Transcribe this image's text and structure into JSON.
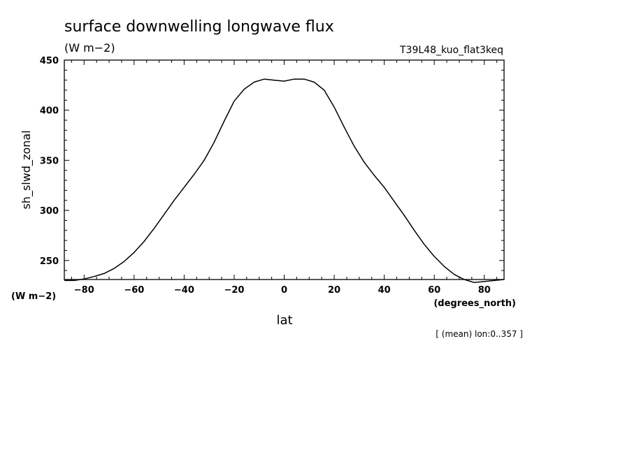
{
  "chart_data": {
    "type": "line",
    "title": "surface downwelling longwave flux",
    "units_label": "(W m−2)",
    "dataset": "T39L48_kuo_flat3keq",
    "xlabel": "lat",
    "x_units": "(degrees_north)",
    "ylabel": "sh_slwd_zonal",
    "y_units": "(W m−2)",
    "footnote": "[ (mean) lon:0..357 ]",
    "xlim": [
      -87.9,
      87.9
    ],
    "ylim": [
      231,
      450
    ],
    "xticks": [
      -80,
      -60,
      -40,
      -20,
      0,
      20,
      40,
      60,
      80
    ],
    "xtick_labels": [
      "−80",
      "−60",
      "−40",
      "−20",
      "0",
      "20",
      "40",
      "60",
      "80"
    ],
    "yticks": [
      250,
      300,
      350,
      400,
      450
    ],
    "ytick_labels": [
      "250",
      "300",
      "350",
      "400",
      "450"
    ],
    "series": [
      {
        "x": [
          -87.9,
          -84,
          -80,
          -76,
          -72,
          -68,
          -64,
          -60,
          -56,
          -52,
          -48,
          -44,
          -40,
          -36,
          -32,
          -28,
          -24,
          -20,
          -16,
          -12,
          -8,
          -4,
          0,
          4,
          8,
          12,
          16,
          20,
          24,
          28,
          32,
          36,
          40,
          44,
          48,
          52,
          56,
          60,
          64,
          68,
          72,
          76,
          80,
          84,
          87.9
        ],
        "y": [
          230,
          230,
          231.5,
          234,
          237,
          242,
          249,
          258,
          269,
          282,
          296,
          310,
          323,
          336,
          350,
          368,
          389,
          409,
          421,
          428,
          431,
          430,
          429,
          431,
          431,
          428,
          420,
          403,
          383,
          364,
          348,
          335,
          323,
          309,
          295,
          280,
          266,
          254,
          244,
          236,
          231,
          228,
          229,
          230,
          231
        ]
      }
    ]
  }
}
